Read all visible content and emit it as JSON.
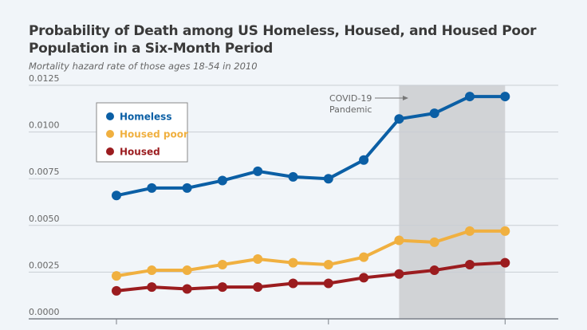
{
  "chart_data": {
    "type": "line",
    "title": "Probability of Death among US Homeless, Housed, and Housed Poor Population in a Six-Month Period",
    "subtitle": "Mortality hazard rate of those ages 18-54 in 2010",
    "xlabel": "",
    "ylabel": "",
    "ylim": [
      0,
      0.0125
    ],
    "yticks": [
      "0.0000",
      "0.0025",
      "0.0050",
      "0.0075",
      "0.0100",
      "0.0125"
    ],
    "grid": true,
    "legend_position": "top-left",
    "series": [
      {
        "name": "Homeless",
        "color": "#0b5fa5",
        "values": [
          0.0066,
          0.007,
          0.007,
          0.0074,
          0.0079,
          0.0076,
          0.0075,
          0.0085,
          0.0107,
          0.011,
          0.0119,
          0.0119
        ]
      },
      {
        "name": "Housed poor",
        "color": "#f0b040",
        "values": [
          0.0023,
          0.0026,
          0.0026,
          0.0029,
          0.0032,
          0.003,
          0.0029,
          0.0033,
          0.0042,
          0.0041,
          0.0047,
          0.0047
        ]
      },
      {
        "name": "Housed",
        "color": "#9b1c1f",
        "values": [
          0.0015,
          0.0017,
          0.0016,
          0.0017,
          0.0017,
          0.0019,
          0.0019,
          0.0022,
          0.0024,
          0.0026,
          0.0029,
          0.003
        ]
      }
    ],
    "shaded_region": {
      "from_index": 8,
      "to_index": 11,
      "label": "COVID-19 Pandemic",
      "label_lines": [
        "COVID-19",
        "Pandemic"
      ],
      "color": "#d1d3d6"
    }
  }
}
